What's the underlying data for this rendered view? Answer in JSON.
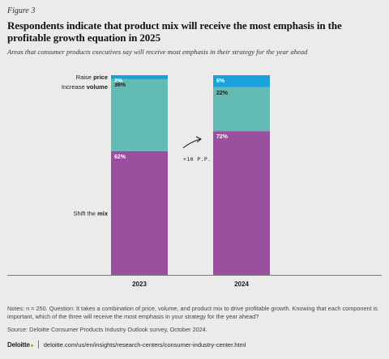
{
  "figure_label": "Figure 3",
  "chart_data": {
    "type": "bar",
    "stacked": true,
    "title": "Respondents indicate that product mix will receive the most emphasis in the profitable growth equation in 2025",
    "subtitle": "Areas that consumer products executives say will receive most emphasis in their strategy for the year ahead",
    "categories": [
      "2023",
      "2024"
    ],
    "ylim": [
      0,
      100
    ],
    "grid": false,
    "series": [
      {
        "name": "Shift the mix",
        "label_parts": [
          "Shift the ",
          "mix"
        ],
        "color": "#9b4f9f",
        "values": [
          62,
          72
        ],
        "value_labels": [
          "62%",
          "72%"
        ]
      },
      {
        "name": "Increase volume",
        "label_parts": [
          "Increase ",
          "volume"
        ],
        "color": "#63bbb5",
        "values": [
          36,
          22
        ],
        "value_labels": [
          "36%",
          "22%"
        ]
      },
      {
        "name": "Raise price",
        "label_parts": [
          "Raise ",
          "price"
        ],
        "color": "#1aa1dc",
        "values": [
          2,
          6
        ],
        "value_labels": [
          "2%",
          "6%"
        ]
      }
    ],
    "annotation": {
      "text": "+10 P.P."
    }
  },
  "notes": "Notes: n = 250. Question: It takes a combination of price, volume, and product mix to drive profitable growth. Knowing that each component is important, which of the three will receive the most emphasis in your strategy for the year ahead?",
  "source": "Source: Deloitte Consumer Products Industry Outlook survey, October 2024.",
  "footer": {
    "logo": "Deloitte",
    "url": "deloitte.com/us/en/insights/research-centers/consumer-industry-center.html"
  }
}
